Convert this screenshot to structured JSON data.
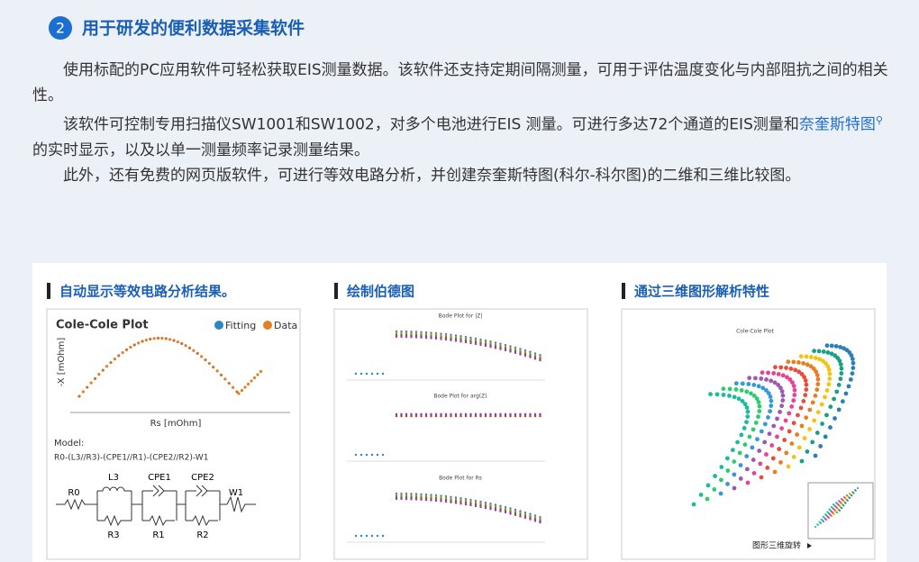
{
  "header": {
    "number": "2",
    "title": "用于研发的便利数据采集软件"
  },
  "intro": {
    "p1": "使用标配的PC应用软件可轻松获取EIS测量数据。该软件还支持定期间隔测量，可用于评估温度变化与内部阻抗之间的相关性。",
    "p2_before": "该软件可控制专用扫描仪SW1001和SW1002，对多个电池进行EIS 测量。可进行多达72个通道的EIS测量和",
    "p2_link": "奈奎斯特图",
    "p2_after": "的实时显示，以及以单一测量频率记录测量结果。",
    "p3": "此外，还有免费的网页版软件，可进行等效电路分析，并创建奈奎斯特图(科尔-科尔图)的二维和三维比较图。"
  },
  "cards": [
    {
      "heading": "自动显示等效电路分析结果。",
      "plot_title": "Cole-Cole Plot",
      "legend": [
        "Fitting",
        "Data"
      ],
      "y_label": "-X [mOhm]",
      "x_label": "Rs [mOhm]",
      "model_label": "Model:",
      "model": "R0-(L3//R3)-(CPE1//R1)-(CPE2//R2)-W1",
      "components": [
        "L3",
        "CPE1",
        "CPE2",
        "R0",
        "W1",
        "R3",
        "R1",
        "R2"
      ]
    },
    {
      "heading": "绘制伯德图",
      "plot_titles": [
        "Bode Plot for |Z|",
        "Bode Plot for arg(Z)",
        "Bode Plot for Rs"
      ]
    },
    {
      "heading": "通过三维图形解析特性",
      "plot_title": "Cole-Cole Plot",
      "caption": "图形三维旋转"
    }
  ]
}
